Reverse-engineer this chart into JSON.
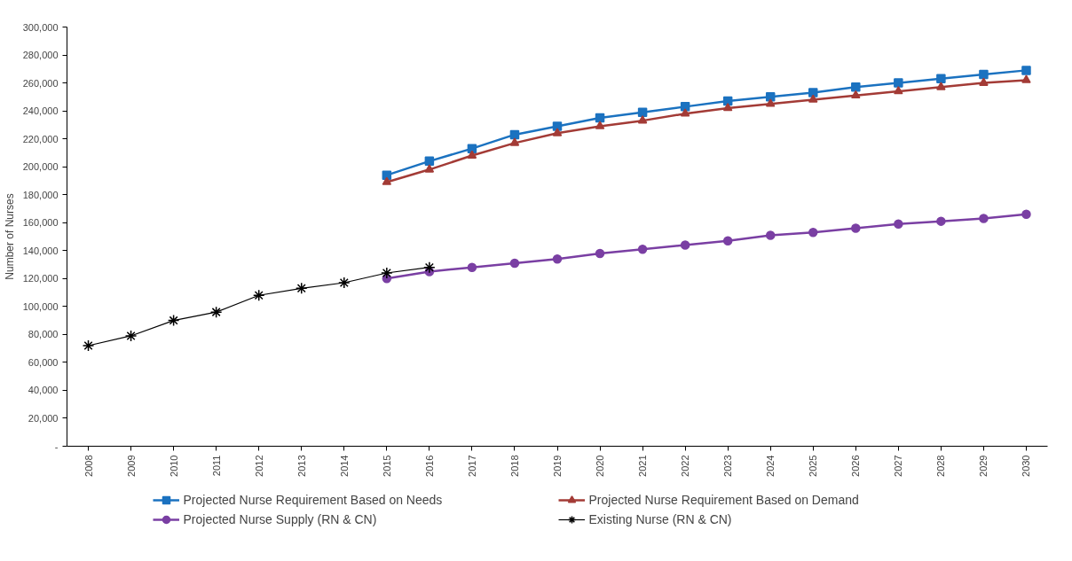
{
  "chart_data": {
    "type": "line",
    "ylabel": "Number of Nurses",
    "categories": [
      "2008",
      "2009",
      "2010",
      "2011",
      "2012",
      "2013",
      "2014",
      "2015",
      "2016",
      "2017",
      "2018",
      "2019",
      "2020",
      "2021",
      "2022",
      "2023",
      "2024",
      "2025",
      "2026",
      "2027",
      "2028",
      "2029",
      "2030"
    ],
    "ylim": [
      0,
      300000
    ],
    "yticks": [
      {
        "value": 0,
        "label": "-"
      },
      {
        "value": 20000,
        "label": "20,000"
      },
      {
        "value": 40000,
        "label": "40,000"
      },
      {
        "value": 60000,
        "label": "60,000"
      },
      {
        "value": 80000,
        "label": "80,000"
      },
      {
        "value": 100000,
        "label": "100,000"
      },
      {
        "value": 120000,
        "label": "120,000"
      },
      {
        "value": 140000,
        "label": "140,000"
      },
      {
        "value": 160000,
        "label": "160,000"
      },
      {
        "value": 180000,
        "label": "180,000"
      },
      {
        "value": 200000,
        "label": "200,000"
      },
      {
        "value": 220000,
        "label": "220,000"
      },
      {
        "value": 240000,
        "label": "240,000"
      },
      {
        "value": 260000,
        "label": "260,000"
      },
      {
        "value": 280000,
        "label": "280,000"
      },
      {
        "value": 300000,
        "label": "300,000"
      }
    ],
    "grid": false,
    "legend": "bottom",
    "series": [
      {
        "name": "Projected Nurse Requirement Based on Needs",
        "color": "#1b72c0",
        "marker": "square",
        "values": [
          null,
          null,
          null,
          null,
          null,
          null,
          null,
          194000,
          204000,
          213000,
          223000,
          229000,
          235000,
          239000,
          243000,
          247000,
          250000,
          253000,
          257000,
          260000,
          263000,
          266000,
          269000
        ]
      },
      {
        "name": "Projected Nurse Requirement Based on Demand",
        "color": "#a33b36",
        "marker": "triangle",
        "values": [
          null,
          null,
          null,
          null,
          null,
          null,
          null,
          189000,
          198000,
          208000,
          217000,
          224000,
          229000,
          233000,
          238000,
          242000,
          245000,
          248000,
          251000,
          254000,
          257000,
          260000,
          262000
        ]
      },
      {
        "name": "Projected Nurse Supply (RN & CN)",
        "color": "#7a3fa3",
        "marker": "circle",
        "values": [
          null,
          null,
          null,
          null,
          null,
          null,
          null,
          120000,
          125000,
          128000,
          131000,
          134000,
          138000,
          141000,
          144000,
          147000,
          151000,
          153000,
          156000,
          159000,
          161000,
          163000,
          166000
        ]
      },
      {
        "name": "Existing Nurse (RN & CN)",
        "color": "#000000",
        "marker": "cross",
        "values": [
          72000,
          79000,
          90000,
          96000,
          108000,
          113000,
          117000,
          124000,
          128000,
          null,
          null,
          null,
          null,
          null,
          null,
          null,
          null,
          null,
          null,
          null,
          null,
          null,
          null
        ]
      }
    ]
  }
}
